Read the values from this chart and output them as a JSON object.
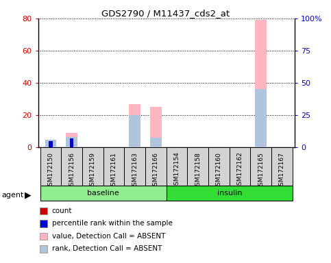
{
  "title": "GDS2790 / M11437_cds2_at",
  "samples": [
    "GSM172150",
    "GSM172156",
    "GSM172159",
    "GSM172161",
    "GSM172163",
    "GSM172166",
    "GSM172154",
    "GSM172158",
    "GSM172160",
    "GSM172162",
    "GSM172165",
    "GSM172167"
  ],
  "groups": [
    {
      "name": "baseline",
      "count": 6,
      "color": "#90EE90"
    },
    {
      "name": "insulin",
      "count": 6,
      "color": "#33DD33"
    }
  ],
  "left_ylim": [
    0,
    80
  ],
  "right_ylim": [
    0,
    100
  ],
  "left_yticks": [
    0,
    20,
    40,
    60,
    80
  ],
  "right_yticks": [
    0,
    25,
    50,
    75,
    100
  ],
  "right_yticklabels": [
    "0",
    "25",
    "50",
    "75",
    "100%"
  ],
  "left_ycolor": "#CC0000",
  "right_ycolor": "#0000CC",
  "bars_pink": [
    3.5,
    9.0,
    0.0,
    0.0,
    27.0,
    25.0,
    0.0,
    0.0,
    0.0,
    0.0,
    79.0,
    0.0
  ],
  "bars_lightblue": [
    4.5,
    6.5,
    0.0,
    0.0,
    20.0,
    6.0,
    0.0,
    0.0,
    0.0,
    0.0,
    36.0,
    0.0
  ],
  "bars_red": [
    2.0,
    4.0,
    0.0,
    0.0,
    0.0,
    0.0,
    0.0,
    0.0,
    0.0,
    0.0,
    0.0,
    0.0
  ],
  "bars_darkblue": [
    4.0,
    5.5,
    0.0,
    0.0,
    0.0,
    0.0,
    0.0,
    0.0,
    0.0,
    0.0,
    0.0,
    0.0
  ],
  "legend_items": [
    {
      "color": "#CC0000",
      "label": "count"
    },
    {
      "color": "#0000CC",
      "label": "percentile rank within the sample"
    },
    {
      "color": "#FFB6C1",
      "label": "value, Detection Call = ABSENT"
    },
    {
      "color": "#B0C4DE",
      "label": "rank, Detection Call = ABSENT"
    }
  ],
  "sample_box_color": "#D3D3D3",
  "plot_bg": "#FFFFFF",
  "bar_width": 0.55,
  "thin_bar_width": 0.18,
  "agent_label": "agent"
}
